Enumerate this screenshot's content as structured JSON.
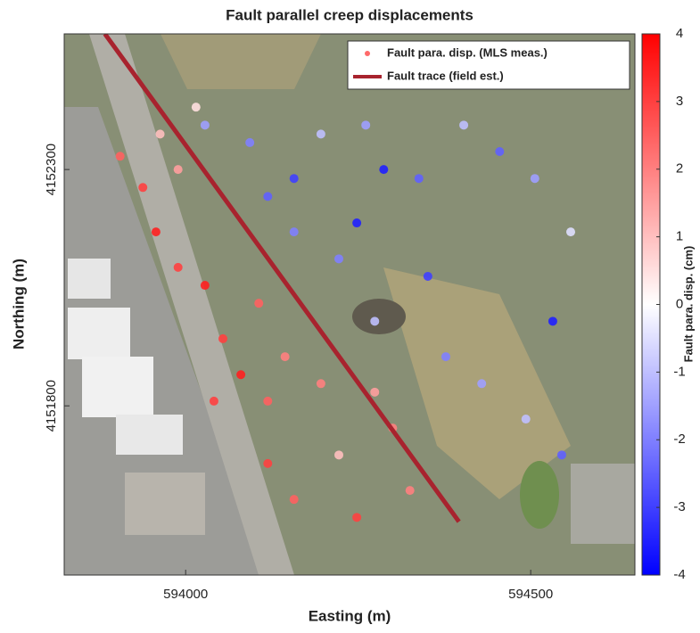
{
  "chart_data": {
    "type": "scatter",
    "title": "Fault parallel creep displacements",
    "xlabel": "Easting (m)",
    "ylabel": "Northing (m)",
    "xlim": [
      593824,
      594651
    ],
    "ylim": [
      4151442,
      4152587
    ],
    "xticks": [
      594000,
      594500
    ],
    "yticks": [
      4151800,
      4152300
    ],
    "legend": "upper right",
    "series": [
      {
        "name": "Fault para. disp. (MLS meas.)",
        "color": "#ff6a6a",
        "type": "scatter",
        "x": [
          593905,
          593938,
          593957,
          593989,
          594028,
          594054,
          594080,
          594119,
          594041,
          594144,
          594106,
          594196,
          594274,
          594300,
          594119,
          594157,
          594248,
          594325,
          593989,
          593963,
          594222,
          594015,
          594028,
          594093,
          594157,
          594119,
          594196,
          594261,
          594287,
          594338,
          594248,
          594157,
          594403,
          594455,
          594506,
          594558,
          594351,
          594274,
          594377,
          594429,
          594532,
          594545,
          594493,
          594222
        ],
        "y": [
          4152328,
          4152262,
          4152168,
          4152093,
          4152055,
          4151942,
          4151866,
          4151810,
          4151810,
          4151904,
          4152017,
          4151847,
          4151829,
          4151753,
          4151678,
          4151602,
          4151564,
          4151621,
          4152300,
          4152375,
          4151696,
          4152432,
          4152394,
          4152357,
          4152281,
          4152243,
          4152375,
          4152394,
          4152300,
          4152281,
          4152187,
          4152168,
          4152394,
          4152338,
          4152281,
          4152168,
          4152074,
          4151979,
          4151904,
          4151847,
          4151979,
          4151696,
          4151772,
          4152111
        ],
        "c": [
          2.5,
          3,
          3.5,
          3,
          3.5,
          3,
          3.5,
          2.5,
          3,
          2,
          2.5,
          2,
          1.5,
          2,
          3,
          2.5,
          3,
          2,
          1.5,
          1,
          1,
          0.5,
          -1.5,
          -2,
          -3,
          -2.5,
          -1,
          -1.5,
          -3.5,
          -2.5,
          -3.5,
          -2,
          -1,
          -2.5,
          -1.5,
          -0.5,
          -3,
          -1,
          -2,
          -1.5,
          -3.5,
          -2.5,
          -1,
          -2
        ]
      },
      {
        "name": "Fault trace (field est.)",
        "color": "#a8232e",
        "type": "line",
        "x": [
          593883,
          594396
        ],
        "y": [
          4152587,
          4151555
        ]
      }
    ],
    "colorbar": {
      "label": "Fault para. disp. (cm)",
      "clim": [
        -4,
        4
      ],
      "ticks": [
        -4,
        -3,
        -2,
        -1,
        0,
        1,
        2,
        3,
        4
      ],
      "colormap": [
        "#0000ff",
        "#ffffff",
        "#ff0000"
      ]
    }
  }
}
